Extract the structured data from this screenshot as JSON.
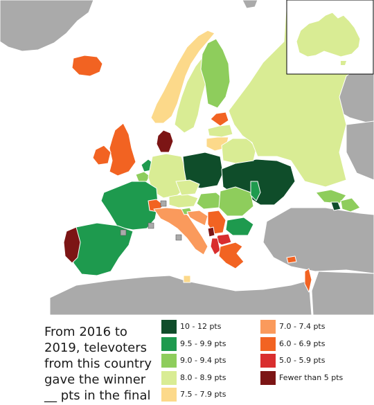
{
  "colors": {
    "sea": "#ffffff",
    "no_data": "#aaaaaa",
    "border": "#ffffff",
    "c10_12": "#0f4d2a",
    "c95_99": "#1e9a4e",
    "c90_94": "#8ecd5c",
    "c80_89": "#d9ec94",
    "c75_79": "#fcd98a",
    "c70_74": "#fa9a5c",
    "c60_69": "#f26322",
    "c50_59": "#d92e2e",
    "c_lt5": "#7c1515"
  },
  "caption_lines": [
    "From 2016 to",
    "2019, televoters",
    "from this country",
    "gave the winner",
    "__ pts in the final"
  ],
  "legend_left": [
    {
      "label": "10 - 12 pts",
      "color": "#0f4d2a"
    },
    {
      "label": "9.5 - 9.9 pts",
      "color": "#1e9a4e"
    },
    {
      "label": "9.0 - 9.4 pts",
      "color": "#8ecd5c"
    },
    {
      "label": "8.0 - 8.9 pts",
      "color": "#d9ec94"
    },
    {
      "label": "7.5 - 7.9 pts",
      "color": "#fcd98a"
    }
  ],
  "legend_right": [
    {
      "label": "7.0 - 7.4 pts",
      "color": "#fa9a5c"
    },
    {
      "label": "6.0 - 6.9 pts",
      "color": "#f26322"
    },
    {
      "label": "5.0 - 5.9 pts",
      "color": "#d92e2e"
    },
    {
      "label": "Fewer than 5 pts",
      "color": "#7c1515"
    }
  ],
  "countries": [
    {
      "name": "Iceland",
      "band": "6.0 - 6.9 pts"
    },
    {
      "name": "Norway",
      "band": "7.5 - 7.9 pts"
    },
    {
      "name": "Sweden",
      "band": "8.0 - 8.9 pts"
    },
    {
      "name": "Finland",
      "band": "9.0 - 9.4 pts"
    },
    {
      "name": "Estonia",
      "band": "6.0 - 6.9 pts"
    },
    {
      "name": "Latvia",
      "band": "8.0 - 8.9 pts"
    },
    {
      "name": "Lithuania",
      "band": "7.5 - 7.9 pts"
    },
    {
      "name": "Denmark",
      "band": "Fewer than 5 pts"
    },
    {
      "name": "United Kingdom",
      "band": "6.0 - 6.9 pts"
    },
    {
      "name": "Ireland",
      "band": "6.0 - 6.9 pts"
    },
    {
      "name": "Netherlands",
      "band": "9.5 - 9.9 pts"
    },
    {
      "name": "Belgium",
      "band": "9.0 - 9.4 pts"
    },
    {
      "name": "Germany",
      "band": "8.0 - 8.9 pts"
    },
    {
      "name": "Poland",
      "band": "10 - 12 pts"
    },
    {
      "name": "Ukraine",
      "band": "10 - 12 pts"
    },
    {
      "name": "Belarus",
      "band": "8.0 - 8.9 pts"
    },
    {
      "name": "Russia",
      "band": "8.0 - 8.9 pts"
    },
    {
      "name": "France",
      "band": "9.5 - 9.9 pts"
    },
    {
      "name": "Spain",
      "band": "9.5 - 9.9 pts"
    },
    {
      "name": "Portugal",
      "band": "Fewer than 5 pts"
    },
    {
      "name": "Switzerland",
      "band": "6.0 - 6.9 pts"
    },
    {
      "name": "Austria",
      "band": "8.0 - 8.9 pts"
    },
    {
      "name": "Czech Republic",
      "band": "8.0 - 8.9 pts"
    },
    {
      "name": "Hungary",
      "band": "9.0 - 9.4 pts"
    },
    {
      "name": "Romania",
      "band": "9.0 - 9.4 pts"
    },
    {
      "name": "Moldova",
      "band": "9.5 - 9.9 pts"
    },
    {
      "name": "Italy",
      "band": "7.0 - 7.4 pts"
    },
    {
      "name": "Slovenia",
      "band": "9.0 - 9.4 pts"
    },
    {
      "name": "Croatia",
      "band": "7.0 - 7.4 pts"
    },
    {
      "name": "Serbia",
      "band": "6.0 - 6.9 pts"
    },
    {
      "name": "Bulgaria",
      "band": "9.5 - 9.9 pts"
    },
    {
      "name": "North Macedonia",
      "band": "5.0 - 5.9 pts"
    },
    {
      "name": "Montenegro",
      "band": "Fewer than 5 pts"
    },
    {
      "name": "Albania",
      "band": "5.0 - 5.9 pts"
    },
    {
      "name": "Greece",
      "band": "6.0 - 6.9 pts"
    },
    {
      "name": "Cyprus",
      "band": "6.0 - 6.9 pts"
    },
    {
      "name": "Israel",
      "band": "6.0 - 6.9 pts"
    },
    {
      "name": "Georgia",
      "band": "9.0 - 9.4 pts"
    },
    {
      "name": "Armenia",
      "band": "10 - 12 pts"
    },
    {
      "name": "Azerbaijan",
      "band": "9.0 - 9.4 pts"
    },
    {
      "name": "Malta",
      "band": "7.5 - 7.9 pts"
    },
    {
      "name": "Australia",
      "band": "8.0 - 8.9 pts"
    }
  ]
}
